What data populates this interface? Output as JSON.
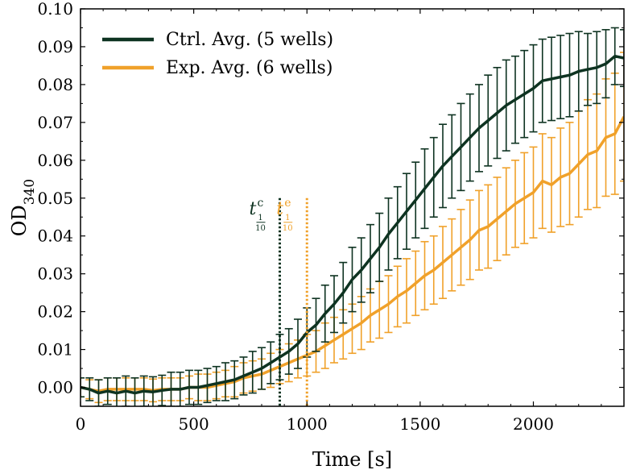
{
  "chart_data": {
    "type": "line",
    "title": "",
    "xlabel": "Time [s]",
    "ylabel": "OD",
    "ylabel_subscript": "340",
    "xlim": [
      0,
      2400
    ],
    "ylim": [
      -0.005,
      0.1
    ],
    "xticks": [
      0,
      500,
      1000,
      1500,
      2000
    ],
    "xtick_labels": [
      "0",
      "500",
      "1000",
      "1500",
      "2000"
    ],
    "yticks": [
      0.0,
      0.01,
      0.02,
      0.03,
      0.04,
      0.05,
      0.06,
      0.07,
      0.08,
      0.09,
      0.1
    ],
    "ytick_labels": [
      "0.00",
      "0.01",
      "0.02",
      "0.03",
      "0.04",
      "0.05",
      "0.06",
      "0.07",
      "0.08",
      "0.09",
      "0.10"
    ],
    "grid": false,
    "legend_position": "top-left",
    "x": [
      0,
      40,
      80,
      120,
      160,
      200,
      240,
      280,
      320,
      360,
      400,
      440,
      480,
      520,
      560,
      600,
      640,
      680,
      720,
      760,
      800,
      840,
      880,
      920,
      960,
      1000,
      1040,
      1080,
      1120,
      1160,
      1200,
      1240,
      1280,
      1320,
      1360,
      1400,
      1440,
      1480,
      1520,
      1560,
      1600,
      1640,
      1680,
      1720,
      1760,
      1800,
      1840,
      1880,
      1920,
      1960,
      2000,
      2040,
      2080,
      2120,
      2160,
      2200,
      2240,
      2280,
      2320,
      2360,
      2400
    ],
    "series": [
      {
        "name": "Ctrl. Avg. (5 wells)",
        "color": "#0e3321",
        "values": [
          0.0,
          -0.0005,
          -0.0015,
          -0.001,
          -0.0015,
          -0.001,
          -0.0015,
          -0.001,
          -0.0012,
          -0.0008,
          -0.0005,
          -0.0005,
          0.0,
          0.0,
          0.0005,
          0.001,
          0.0015,
          0.002,
          0.003,
          0.004,
          0.005,
          0.0065,
          0.008,
          0.0095,
          0.0115,
          0.0145,
          0.0165,
          0.0195,
          0.022,
          0.025,
          0.0285,
          0.031,
          0.034,
          0.037,
          0.0405,
          0.0435,
          0.0465,
          0.0495,
          0.0525,
          0.0555,
          0.0585,
          0.061,
          0.0635,
          0.066,
          0.0685,
          0.0705,
          0.0725,
          0.0745,
          0.076,
          0.0775,
          0.079,
          0.081,
          0.0815,
          0.082,
          0.0825,
          0.0835,
          0.084,
          0.0845,
          0.0855,
          0.0875,
          0.087
        ],
        "errors": [
          0.0025,
          0.003,
          0.0035,
          0.0035,
          0.004,
          0.004,
          0.004,
          0.004,
          0.004,
          0.004,
          0.0045,
          0.0045,
          0.0045,
          0.0045,
          0.0045,
          0.0045,
          0.005,
          0.005,
          0.005,
          0.0055,
          0.0055,
          0.0055,
          0.006,
          0.006,
          0.0065,
          0.0065,
          0.007,
          0.0075,
          0.0075,
          0.008,
          0.0085,
          0.0085,
          0.009,
          0.009,
          0.0095,
          0.0095,
          0.01,
          0.01,
          0.0105,
          0.0105,
          0.011,
          0.011,
          0.0115,
          0.0115,
          0.0115,
          0.012,
          0.012,
          0.012,
          0.0115,
          0.0115,
          0.0115,
          0.011,
          0.011,
          0.011,
          0.011,
          0.0105,
          0.0095,
          0.0095,
          0.009,
          0.0075,
          0.0075
        ]
      },
      {
        "name": "Exp. Avg. (6 wells)",
        "color": "#f0a12a",
        "values": [
          0.0,
          -0.0005,
          -0.001,
          -0.0005,
          -0.0005,
          -0.0005,
          -0.0005,
          -0.0005,
          -0.0008,
          -0.0005,
          -0.0005,
          -0.0005,
          0.0,
          0.0,
          0.0,
          0.0005,
          0.001,
          0.0015,
          0.0025,
          0.003,
          0.0035,
          0.0045,
          0.0055,
          0.0065,
          0.0075,
          0.0085,
          0.0095,
          0.011,
          0.0125,
          0.014,
          0.0155,
          0.017,
          0.019,
          0.0205,
          0.022,
          0.024,
          0.0255,
          0.0275,
          0.0295,
          0.031,
          0.033,
          0.035,
          0.037,
          0.039,
          0.0415,
          0.0425,
          0.0445,
          0.0465,
          0.0485,
          0.05,
          0.0515,
          0.0545,
          0.0535,
          0.0555,
          0.0565,
          0.059,
          0.0615,
          0.0625,
          0.066,
          0.067,
          0.0715
        ],
        "errors": [
          0.0025,
          0.0025,
          0.003,
          0.003,
          0.003,
          0.003,
          0.003,
          0.003,
          0.003,
          0.003,
          0.003,
          0.003,
          0.003,
          0.0035,
          0.0035,
          0.0035,
          0.0035,
          0.004,
          0.004,
          0.004,
          0.004,
          0.0045,
          0.0045,
          0.005,
          0.005,
          0.0055,
          0.0055,
          0.006,
          0.006,
          0.0065,
          0.0065,
          0.007,
          0.007,
          0.0075,
          0.0075,
          0.008,
          0.0085,
          0.0085,
          0.009,
          0.009,
          0.0095,
          0.0095,
          0.01,
          0.0105,
          0.0105,
          0.011,
          0.011,
          0.0115,
          0.0115,
          0.012,
          0.012,
          0.0125,
          0.0125,
          0.013,
          0.0135,
          0.014,
          0.0145,
          0.015,
          0.0155,
          0.016,
          0.017
        ]
      }
    ],
    "annotations": [
      {
        "label": "t",
        "superscript": "c",
        "fraction_num": "1",
        "fraction_den": "10",
        "x": 880,
        "y_top": 0.05,
        "color": "#0e3321",
        "style": "dotted vertical line"
      },
      {
        "label": "t",
        "superscript": "e",
        "fraction_num": "1",
        "fraction_den": "10",
        "x": 1000,
        "y_top": 0.05,
        "color": "#f0a12a",
        "style": "dotted vertical line"
      }
    ]
  }
}
